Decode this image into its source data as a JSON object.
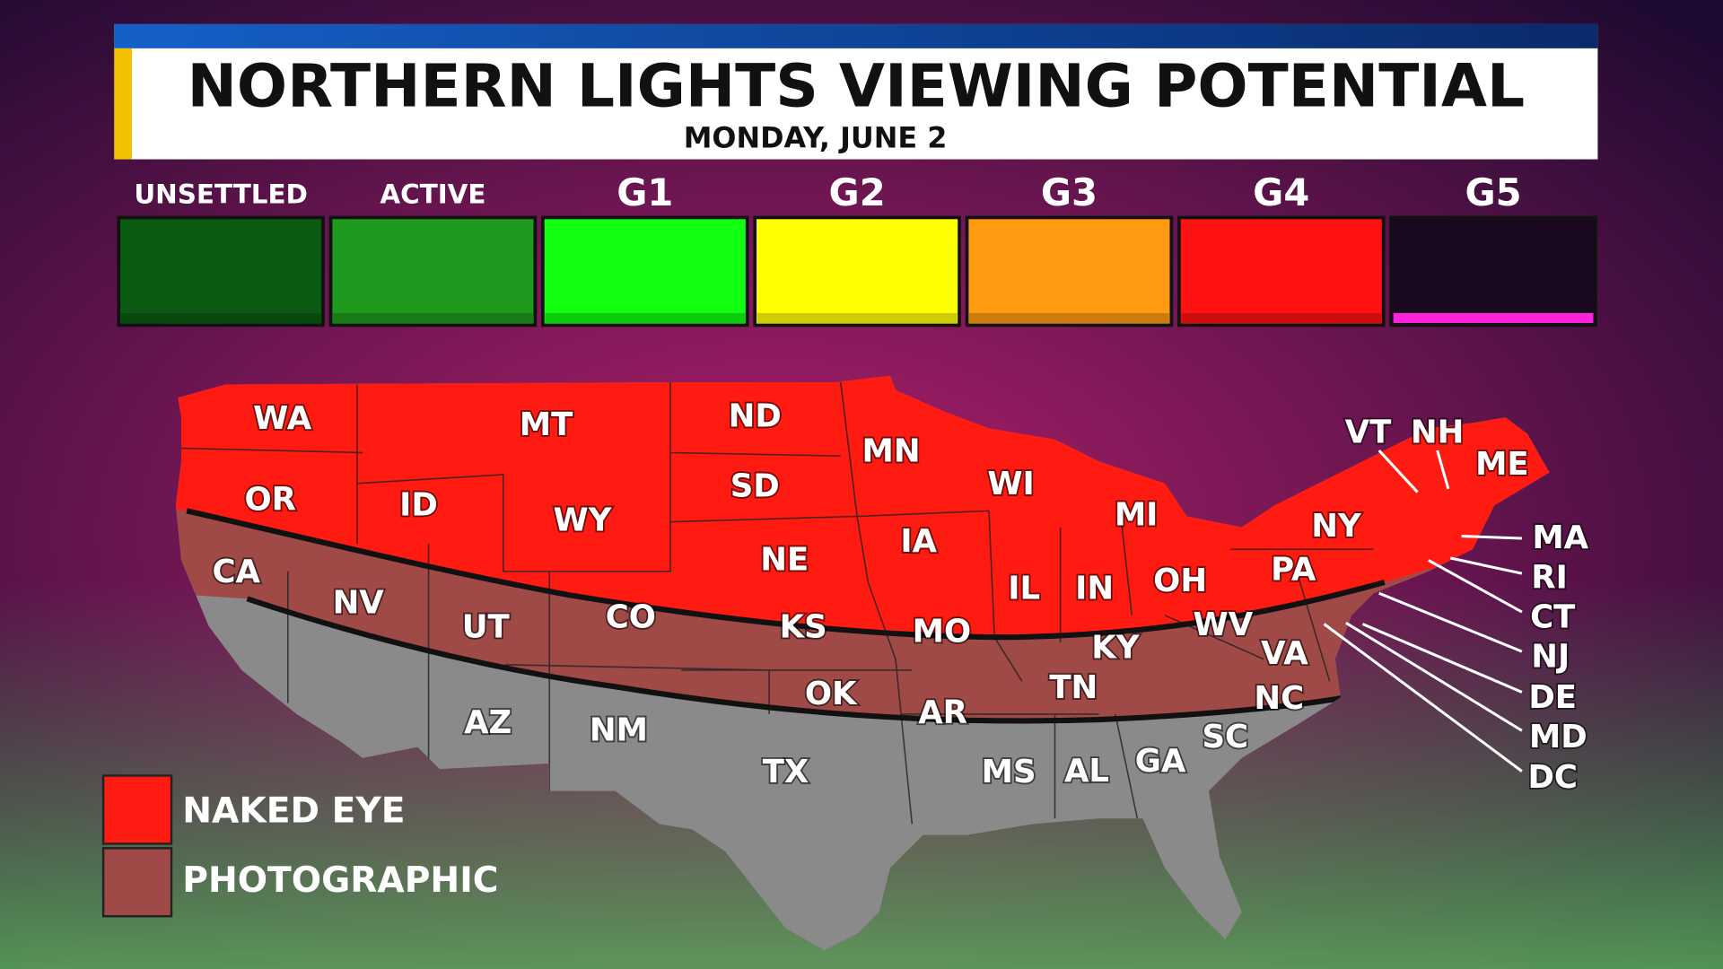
{
  "header": {
    "title": "NORTHERN LIGHTS VIEWING POTENTIAL",
    "subtitle": "MONDAY, JUNE 2"
  },
  "scale": {
    "levels": [
      "UNSETTLED",
      "ACTIVE",
      "G1",
      "G2",
      "G3",
      "G4",
      "G5"
    ]
  },
  "map": {
    "states": [
      "WA",
      "OR",
      "CA",
      "ID",
      "NV",
      "MT",
      "WY",
      "UT",
      "CO",
      "AZ",
      "NM",
      "ND",
      "SD",
      "NE",
      "KS",
      "OK",
      "TX",
      "MN",
      "IA",
      "MO",
      "AR",
      "WI",
      "IL",
      "MS",
      "MI",
      "IN",
      "KY",
      "TN",
      "AL",
      "OH",
      "WV",
      "GA",
      "VA",
      "NC",
      "SC",
      "PA",
      "NY",
      "VT",
      "NH",
      "ME",
      "MA",
      "RI",
      "CT",
      "NJ",
      "DE",
      "MD",
      "DC"
    ]
  },
  "legend": {
    "items": [
      "NAKED EYE",
      "PHOTOGRAPHIC"
    ]
  }
}
